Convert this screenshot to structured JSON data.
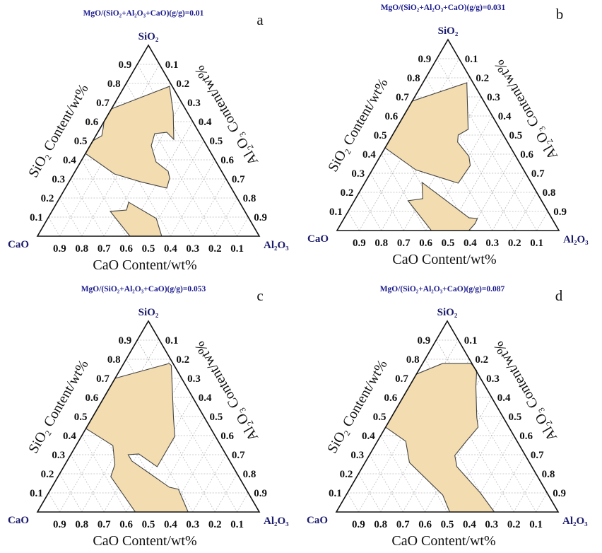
{
  "colors": {
    "region_fill": "#f2dcb0",
    "title": "#1a1a8c",
    "vertex_label": "#1a1a6c"
  },
  "chart_data": [
    {
      "type": "ternary",
      "panel_label": "a",
      "title": "MgO/(SiO₂+Al₂O₃+CaO)(g/g)=0.01",
      "vertices": {
        "top": "SiO₂",
        "left": "CaO",
        "right": "Al₂O₃"
      },
      "axis_labels": {
        "left": "SiO₂ Content/wt%",
        "right": "Al₂O₃ Content/wt%",
        "bottom": "CaO Content/wt%"
      },
      "ticks": {
        "left": [
          "0.1",
          "0.2",
          "0.3",
          "0.4",
          "0.5",
          "0.6",
          "0.7",
          "0.8",
          "0.9"
        ],
        "right": [
          "0.1",
          "0.2",
          "0.3",
          "0.4",
          "0.5",
          "0.6",
          "0.7",
          "0.8",
          "0.9"
        ],
        "bottom": [
          "0.9",
          "0.8",
          "0.7",
          "0.6",
          "0.5",
          "0.4",
          "0.3",
          "0.2",
          "0.1"
        ]
      },
      "grid": true,
      "regions_format": "[SiO2, Al2O3] mass fraction; CaO = 1 - SiO2 - Al2O3",
      "regions": [
        [
          [
            0.667,
            0
          ],
          [
            0.785,
            0.203
          ],
          [
            0.648,
            0.288
          ],
          [
            0.507,
            0.361
          ],
          [
            0.544,
            0.311
          ],
          [
            0.537,
            0.26
          ],
          [
            0.474,
            0.276
          ],
          [
            0.389,
            0.34
          ],
          [
            0.34,
            0.419
          ],
          [
            0.304,
            0.444
          ],
          [
            0.252,
            0.457
          ],
          [
            0.285,
            0.322
          ],
          [
            0.326,
            0.184
          ],
          [
            0.433,
            0
          ],
          [
            0.5,
            0
          ],
          [
            0.526,
            0.027
          ],
          [
            0.567,
            0.013
          ],
          [
            0.6,
            0
          ]
        ],
        [
          [
            0.178,
            0.322
          ],
          [
            0.093,
            0.489
          ],
          [
            0,
            0.56
          ],
          [
            0,
            0.417
          ],
          [
            0.13,
            0.263
          ],
          [
            0.137,
            0.333
          ]
        ]
      ]
    },
    {
      "type": "ternary",
      "panel_label": "b",
      "title": "MgO/(SiO₂+Al₂O₃+CaO)(g/g)=0.031",
      "vertices": {
        "top": "SiO₂",
        "left": "CaO",
        "right": "Al₂O₃"
      },
      "axis_labels": {
        "left": "SiO₂ Content/wt%",
        "right": "Al₂O₃ Content/wt%",
        "bottom": "CaO Content/wt%"
      },
      "ticks": {
        "left": [
          "0.1",
          "0.2",
          "0.3",
          "0.4",
          "0.5",
          "0.6",
          "0.7",
          "0.8",
          "0.9"
        ],
        "right": [
          "0.1",
          "0.2",
          "0.3",
          "0.4",
          "0.5",
          "0.6",
          "0.7",
          "0.8",
          "0.9"
        ],
        "bottom": [
          "0.9",
          "0.8",
          "0.7",
          "0.6",
          "0.5",
          "0.4",
          "0.3",
          "0.2",
          "0.1"
        ]
      },
      "grid": true,
      "regions_format": "[SiO2, Al2O3] mass fraction; CaO = 1 - SiO2 - Al2O3",
      "regions": [
        [
          [
            0.678,
            0
          ],
          [
            0.774,
            0.198
          ],
          [
            0.53,
            0.326
          ],
          [
            0.5,
            0.296
          ],
          [
            0.463,
            0.312
          ],
          [
            0.389,
            0.4
          ],
          [
            0.341,
            0.43
          ],
          [
            0.248,
            0.422
          ],
          [
            0.318,
            0.196
          ],
          [
            0.433,
            0
          ]
        ],
        [
          [
            0.252,
            0.257
          ],
          [
            0.067,
            0.561
          ],
          [
            0.063,
            0.601
          ],
          [
            0.037,
            0.604
          ],
          [
            0,
            0.594
          ],
          [
            0,
            0.425
          ],
          [
            0.156,
            0.242
          ],
          [
            0.167,
            0.303
          ]
        ]
      ]
    },
    {
      "type": "ternary",
      "panel_label": "c",
      "title": "MgO/(SiO₂+Al₂O₃+CaO)(g/g)=0.053",
      "vertices": {
        "top": "SiO₂",
        "left": "CaO",
        "right": "Al₂O₃"
      },
      "axis_labels": {
        "left": "SiO₂ Content/wt%",
        "right": "Al₂O₃ Content/wt%",
        "bottom": "CaO Content/wt%"
      },
      "ticks": {
        "left": [
          "0.1",
          "0.2",
          "0.3",
          "0.4",
          "0.5",
          "0.6",
          "0.7",
          "0.8",
          "0.9"
        ],
        "right": [
          "0.1",
          "0.2",
          "0.3",
          "0.4",
          "0.5",
          "0.6",
          "0.7",
          "0.8",
          "0.9"
        ],
        "bottom": [
          "0.9",
          "0.8",
          "0.7",
          "0.6",
          "0.5",
          "0.4",
          "0.3",
          "0.2",
          "0.1"
        ]
      },
      "grid": true,
      "regions_format": "[SiO2, Al2O3] mass fraction; CaO = 1 - SiO2 - Al2O3",
      "regions": [
        [
          [
            0.7,
            0
          ],
          [
            0.778,
            0.205
          ],
          [
            0.767,
            0.22
          ],
          [
            0.496,
            0.365
          ],
          [
            0.396,
            0.421
          ],
          [
            0.237,
            0.421
          ],
          [
            0.304,
            0.305
          ],
          [
            0.3,
            0.259
          ],
          [
            0.267,
            0.292
          ],
          [
            0.2,
            0.408
          ],
          [
            0.13,
            0.529
          ],
          [
            0.119,
            0.576
          ],
          [
            0,
            0.679
          ],
          [
            0,
            0.441
          ],
          [
            0.185,
            0.238
          ],
          [
            0.248,
            0.225
          ],
          [
            0.348,
            0.166
          ],
          [
            0.437,
            0
          ]
        ]
      ]
    },
    {
      "type": "ternary",
      "panel_label": "d",
      "title": "MgO/(SiO₂+Al₂O₃+CaO)(g/g)=0.087",
      "vertices": {
        "top": "SiO₂",
        "left": "CaO",
        "right": "Al₂O₃"
      },
      "axis_labels": {
        "left": "SiO₂ Content/wt%",
        "right": "Al₂O₃ Content/wt%",
        "bottom": "CaO Content/wt%"
      },
      "ticks": {
        "left": [
          "0.1",
          "0.2",
          "0.3",
          "0.4",
          "0.5",
          "0.6",
          "0.7",
          "0.8",
          "0.9"
        ],
        "right": [
          "0.1",
          "0.2",
          "0.3",
          "0.4",
          "0.5",
          "0.6",
          "0.7",
          "0.8",
          "0.9"
        ],
        "bottom": [
          "0.9",
          "0.8",
          "0.7",
          "0.6",
          "0.5",
          "0.4",
          "0.3",
          "0.2",
          "0.1"
        ]
      },
      "grid": true,
      "regions_format": "[SiO2, Al2O3] mass fraction; CaO = 1 - SiO2 - Al2O3",
      "regions": [
        [
          [
            0.722,
            0
          ],
          [
            0.778,
            0.09
          ],
          [
            0.778,
            0.218
          ],
          [
            0.741,
            0.262
          ],
          [
            0.656,
            0.301
          ],
          [
            0.496,
            0.385
          ],
          [
            0.444,
            0.417
          ],
          [
            0.37,
            0.4
          ],
          [
            0.296,
            0.386
          ],
          [
            0.237,
            0.425
          ],
          [
            0.1,
            0.599
          ],
          [
            0,
            0.712
          ],
          [
            0,
            0.511
          ],
          [
            0.089,
            0.435
          ],
          [
            0.259,
            0.2
          ],
          [
            0.37,
            0.128
          ],
          [
            0.444,
            0
          ]
        ]
      ]
    }
  ]
}
